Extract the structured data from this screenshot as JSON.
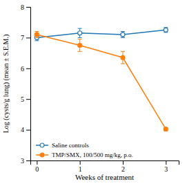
{
  "chart_data": {
    "type": "line",
    "xlabel": "Weeks of treatment",
    "ylabel": "Log (cysts/g lung) (mean ± S.E.M.)",
    "x": [
      0,
      1,
      2,
      3
    ],
    "series": [
      {
        "name": "Saline controls",
        "marker": "circle-open",
        "line_style": "solid",
        "values": [
          7.0,
          7.15,
          7.1,
          7.25
        ],
        "yerr": [
          0.1,
          0.15,
          0.1,
          0.08
        ]
      },
      {
        "name": "TMP/SMX, 100/500 mg/kg, p.o.",
        "marker": "circle",
        "line_style": "solid",
        "values": [
          7.1,
          6.75,
          6.35,
          4.02
        ],
        "yerr": [
          0.1,
          0.2,
          0.2,
          0.05
        ]
      }
    ],
    "xlim": [
      -0.15,
      3.3
    ],
    "ylim": [
      3,
      8
    ],
    "xticks": [
      0,
      1,
      2,
      3
    ],
    "yticks": [
      3,
      4,
      5,
      6,
      7,
      8
    ],
    "grid": false,
    "legend": "lower left"
  }
}
